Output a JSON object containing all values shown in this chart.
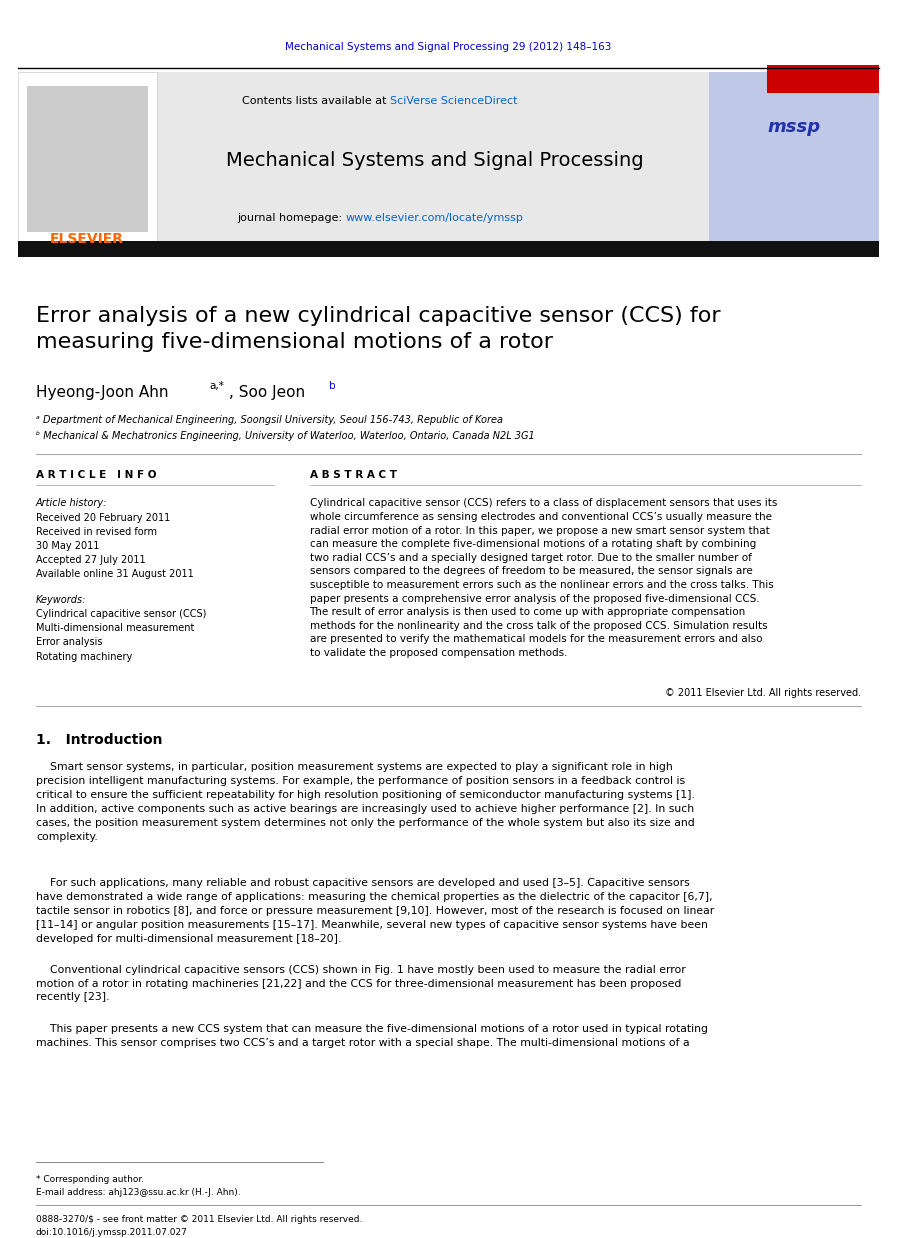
{
  "page_width": 9.07,
  "page_height": 12.38,
  "bg_color": "#ffffff",
  "journal_ref": "Mechanical Systems and Signal Processing 29 (2012) 148–163",
  "journal_ref_color": "#0000cc",
  "header_bg": "#e8e8e8",
  "header_text": "Contents lists available at ",
  "header_link": "SciVerse ScienceDirect",
  "header_link_color": "#0066cc",
  "journal_name": "Mechanical Systems and Signal Processing",
  "journal_homepage_text": "journal homepage: ",
  "journal_homepage_link": "www.elsevier.com/locate/ymssp",
  "journal_homepage_link_color": "#0066cc",
  "elsevier_color": "#ff6600",
  "black_bar_color": "#111111",
  "paper_title": "Error analysis of a new cylindrical capacitive sensor (CCS) for\nmeasuring five-dimensional motions of a rotor",
  "authors": "Hyeong-Joon Ahn",
  "affil1": "ᵃ Department of Mechanical Engineering, Soongsil University, Seoul 156-743, Republic of Korea",
  "affil2": "ᵇ Mechanical & Mechatronics Engineering, University of Waterloo, Waterloo, Ontario, Canada N2L 3G1",
  "article_info_header": "A R T I C L E   I N F O",
  "abstract_header": "A B S T R A C T",
  "article_history_title": "Article history:",
  "received1": "Received 20 February 2011",
  "received2": "Received in revised form",
  "received2b": "30 May 2011",
  "accepted": "Accepted 27 July 2011",
  "available": "Available online 31 August 2011",
  "keywords_title": "Keywords:",
  "kw1": "Cylindrical capacitive sensor (CCS)",
  "kw2": "Multi-dimensional measurement",
  "kw3": "Error analysis",
  "kw4": "Rotating machinery",
  "abstract_text": "Cylindrical capacitive sensor (CCS) refers to a class of displacement sensors that uses its\nwhole circumference as sensing electrodes and conventional CCS’s usually measure the\nradial error motion of a rotor. In this paper, we propose a new smart sensor system that\ncan measure the complete five-dimensional motions of a rotating shaft by combining\ntwo radial CCS’s and a specially designed target rotor. Due to the smaller number of\nsensors compared to the degrees of freedom to be measured, the sensor signals are\nsusceptible to measurement errors such as the nonlinear errors and the cross talks. This\npaper presents a comprehensive error analysis of the proposed five-dimensional CCS.\nThe result of error analysis is then used to come up with appropriate compensation\nmethods for the nonlinearity and the cross talk of the proposed CCS. Simulation results\nare presented to verify the mathematical models for the measurement errors and also\nto validate the proposed compensation methods.",
  "copyright": "© 2011 Elsevier Ltd. All rights reserved.",
  "intro_header": "1.   Introduction",
  "intro_text1": "Smart sensor systems, in particular, position measurement systems are expected to play a significant role in high\nprecision intelligent manufacturing systems. For example, the performance of position sensors in a feedback control is\ncritical to ensure the sufficient repeatability for high resolution positioning of semiconductor manufacturing systems [1].\nIn addition, active components such as active bearings are increasingly used to achieve higher performance [2]. In such\ncases, the position measurement system determines not only the performance of the whole system but also its size and\ncomplexity.",
  "intro_text2": "For such applications, many reliable and robust capacitive sensors are developed and used [3–5]. Capacitive sensors\nhave demonstrated a wide range of applications: measuring the chemical properties as the dielectric of the capacitor [6,7],\ntactile sensor in robotics [8], and force or pressure measurement [9,10]. However, most of the research is focused on linear\n[11–14] or angular position measurements [15–17]. Meanwhile, several new types of capacitive sensor systems have been\ndeveloped for multi-dimensional measurement [18–20].",
  "intro_text3": "Conventional cylindrical capacitive sensors (CCS) shown in Fig. 1 have mostly been used to measure the radial error\nmotion of a rotor in rotating machineries [21,22] and the CCS for three-dimensional measurement has been proposed\nrecently [23].",
  "intro_text4": "This paper presents a new CCS system that can measure the five-dimensional motions of a rotor used in typical rotating\nmachines. This sensor comprises two CCS’s and a target rotor with a special shape. The multi-dimensional motions of a",
  "footnote_star": "* Corresponding author.",
  "footnote_email": "E-mail address: ahj123@ssu.ac.kr (H.-J. Ahn).",
  "footnote_issn": "0888-3270/$ - see front matter © 2011 Elsevier Ltd. All rights reserved.",
  "footnote_doi": "doi:10.1016/j.ymssp.2011.07.027"
}
